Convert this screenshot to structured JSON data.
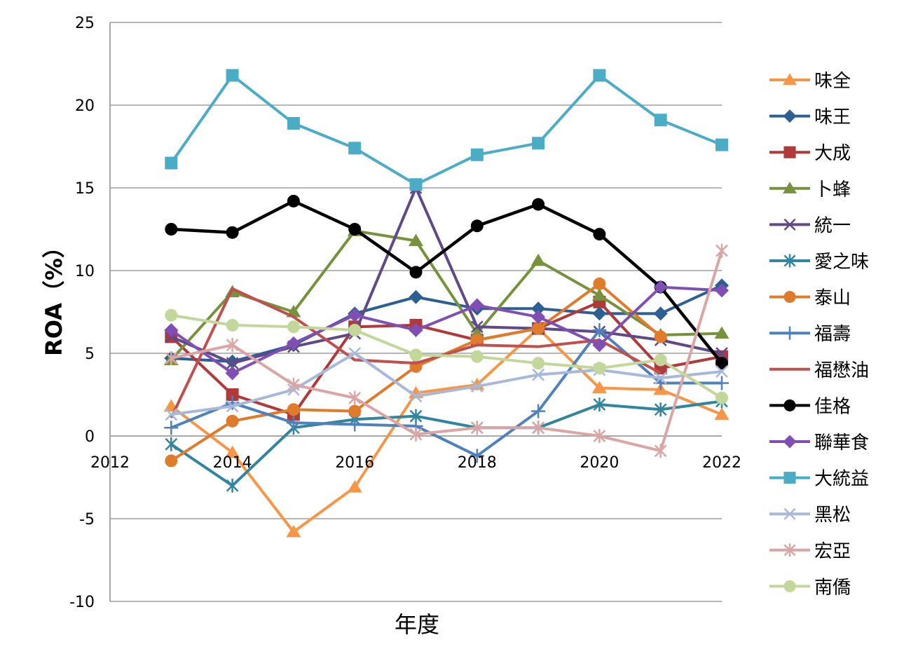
{
  "chart_data": {
    "type": "line",
    "title": "",
    "xlabel": "年度",
    "ylabel": "ROA（%）",
    "xlim": [
      2012,
      2022
    ],
    "ylim": [
      -10,
      25
    ],
    "x_ticks": [
      "2012",
      "2014",
      "2016",
      "2018",
      "2020",
      "2022"
    ],
    "y_ticks": [
      "25",
      "20",
      "15",
      "10",
      "5",
      "0",
      "-5",
      "-10"
    ],
    "grid": "horizontal",
    "legend_position": "right",
    "x": [
      2013,
      2014,
      2015,
      2016,
      2017,
      2018,
      2019,
      2020,
      2021,
      2022
    ],
    "series": [
      {
        "name": "味全",
        "color": "#F79646",
        "marker": "triangle",
        "values": [
          1.8,
          -1.0,
          -5.8,
          -3.1,
          2.6,
          3.1,
          6.5,
          2.9,
          2.8,
          1.3
        ]
      },
      {
        "name": "味王",
        "color": "#2E5F94",
        "marker": "diamond",
        "values": [
          4.7,
          4.5,
          5.5,
          7.4,
          8.4,
          7.7,
          7.7,
          7.4,
          7.4,
          9.1
        ]
      },
      {
        "name": "大成",
        "color": "#B03A3A",
        "marker": "square",
        "values": [
          6.0,
          2.5,
          1.3,
          6.6,
          6.7,
          5.8,
          6.5,
          8.1,
          4.1,
          4.8
        ]
      },
      {
        "name": "卜蜂",
        "color": "#76923C",
        "marker": "triangle",
        "values": [
          4.6,
          8.7,
          7.5,
          12.4,
          11.8,
          6.2,
          10.6,
          8.5,
          6.1,
          6.2
        ]
      },
      {
        "name": "統一",
        "color": "#5F4986",
        "marker": "x",
        "values": [
          6.0,
          4.4,
          5.4,
          6.2,
          15.0,
          6.6,
          6.5,
          6.3,
          5.8,
          5.0
        ]
      },
      {
        "name": "愛之味",
        "color": "#31859C",
        "marker": "star",
        "values": [
          -0.5,
          -3.0,
          0.5,
          1.0,
          1.2,
          0.5,
          0.5,
          1.9,
          1.6,
          2.1
        ]
      },
      {
        "name": "泰山",
        "color": "#E07B2C",
        "marker": "circle",
        "values": [
          -1.5,
          0.9,
          1.6,
          1.5,
          4.2,
          5.8,
          6.5,
          9.2,
          6.0,
          null
        ]
      },
      {
        "name": "福壽",
        "color": "#4F81BD",
        "marker": "plus",
        "values": [
          0.5,
          2.0,
          0.8,
          0.7,
          0.6,
          -1.2,
          1.5,
          6.4,
          3.2,
          3.2
        ]
      },
      {
        "name": "福懋油",
        "color": "#C0504D",
        "marker": "none",
        "values": [
          1.1,
          8.9,
          7.2,
          4.6,
          4.4,
          5.5,
          5.4,
          5.8,
          3.8,
          null
        ]
      },
      {
        "name": "佳格",
        "color": "#000000",
        "marker": "circle",
        "values": [
          12.5,
          12.3,
          14.2,
          12.5,
          9.9,
          12.7,
          14.0,
          12.2,
          9.0,
          4.4
        ]
      },
      {
        "name": "聯華食",
        "color": "#7F4FB3",
        "marker": "diamond",
        "values": [
          6.4,
          3.8,
          5.6,
          7.3,
          6.4,
          7.9,
          7.2,
          5.5,
          9.0,
          8.8
        ]
      },
      {
        "name": "大統益",
        "color": "#4BACC6",
        "marker": "square",
        "values": [
          16.5,
          21.8,
          18.9,
          17.4,
          15.2,
          17.0,
          17.7,
          21.8,
          19.1,
          17.6
        ]
      },
      {
        "name": "黑松",
        "color": "#A8B8DA",
        "marker": "x",
        "values": [
          1.3,
          1.8,
          2.8,
          5.0,
          2.4,
          3.0,
          3.7,
          4.0,
          3.5,
          3.9
        ]
      },
      {
        "name": "宏亞",
        "color": "#D9A5A5",
        "marker": "star",
        "values": [
          4.7,
          5.5,
          3.1,
          2.3,
          0.1,
          0.5,
          0.5,
          0.0,
          -0.9,
          11.2
        ]
      },
      {
        "name": "南僑",
        "color": "#C4D79B",
        "marker": "circle",
        "values": [
          7.3,
          6.7,
          6.6,
          6.4,
          4.9,
          4.8,
          4.4,
          4.1,
          4.6,
          2.3
        ]
      }
    ]
  }
}
